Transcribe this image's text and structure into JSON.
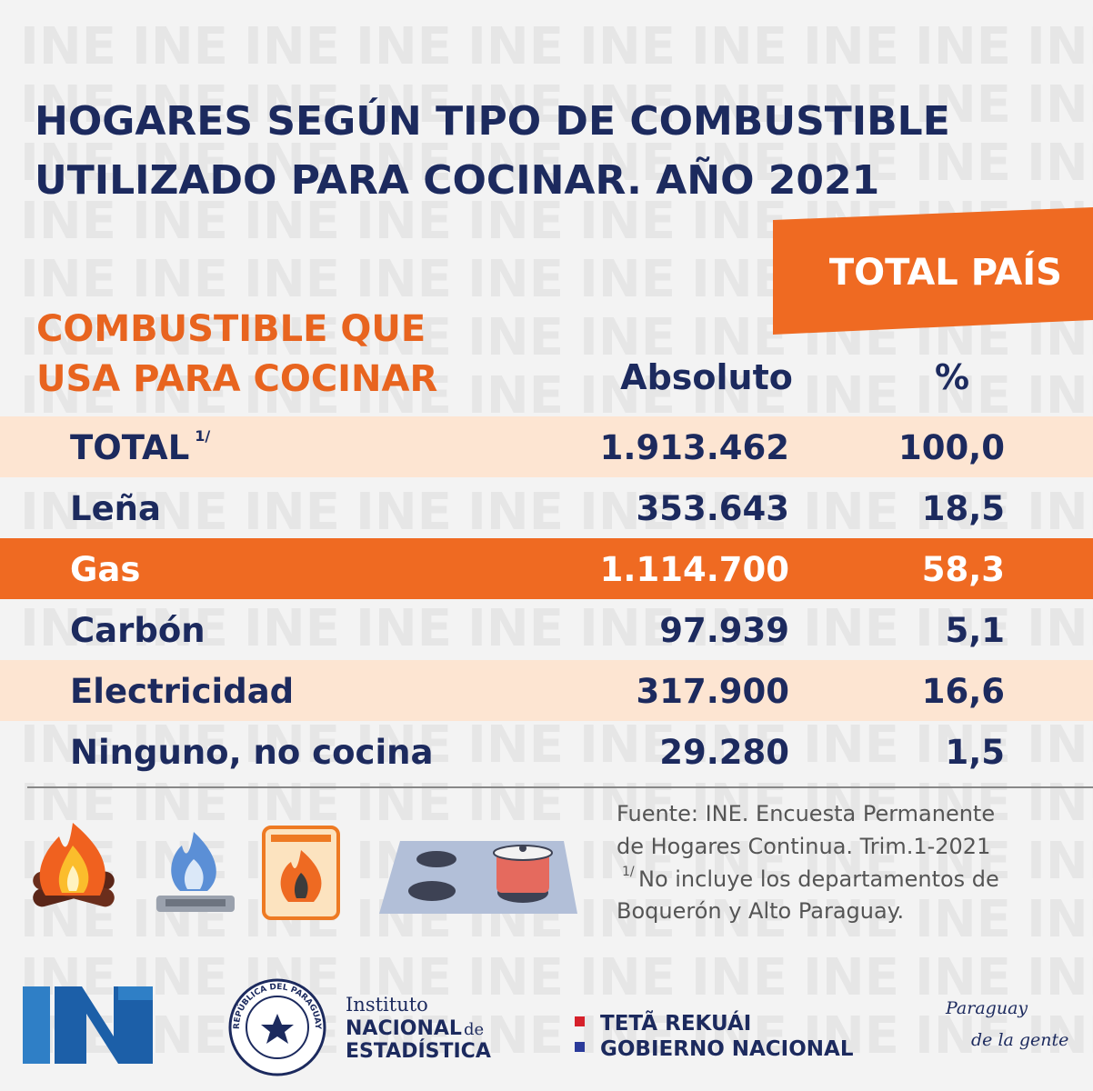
{
  "watermark": "INE",
  "title": [
    "HOGARES SEGÚN TIPO DE COMBUSTIBLE",
    "UTILIZADO PARA COCINAR. AÑO 2021"
  ],
  "region": "TOTAL PAÍS",
  "table": {
    "header": {
      "label": [
        "COMBUSTIBLE QUE",
        "USA PARA COCINAR"
      ],
      "absolute": "Absoluto",
      "percent": "%"
    },
    "rows": [
      {
        "label": "TOTAL",
        "note": "1/",
        "absolute": "1.913.462",
        "percent": "100,0"
      },
      {
        "label": "Leña",
        "absolute": "353.643",
        "percent": "18,5"
      },
      {
        "label": "Gas",
        "absolute": "1.114.700",
        "percent": "58,3"
      },
      {
        "label": "Carbón",
        "absolute": "97.939",
        "percent": "5,1"
      },
      {
        "label": "Electricidad",
        "absolute": "317.900",
        "percent": "16,6"
      },
      {
        "label": "Ninguno, no cocina",
        "absolute": "29.280",
        "percent": "1,5"
      }
    ]
  },
  "source": {
    "lines": [
      "Fuente: INE. Encuesta Permanente",
      "de Hogares Continua. Trim.1-2021"
    ],
    "note_mark": "1/",
    "note": [
      "No incluye los departamentos de",
      "Boquerón y Alto Paraguay."
    ]
  },
  "footer": {
    "seal": "REPÚBLICA DEL PARAGUAY",
    "institute": [
      "Instituto",
      "NACIONAL",
      "de",
      "ESTADÍSTICA"
    ],
    "government": [
      "TETÃ REKUÁI",
      "GOBIERNO NACIONAL"
    ],
    "slogan": [
      "Paraguay",
      "de la gente"
    ]
  }
}
